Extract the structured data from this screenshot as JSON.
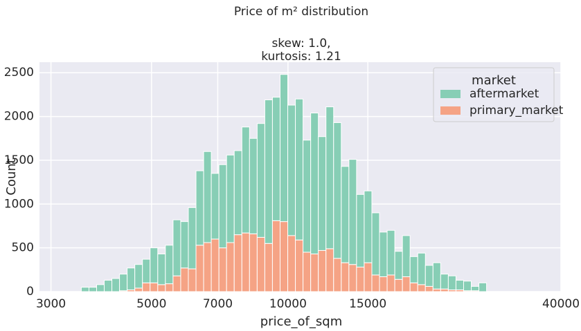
{
  "chart_data": {
    "type": "histogram",
    "title": "Price of m² distribution",
    "subtitle": [
      "skew: 1.0,",
      "kurtosis: 1.21"
    ],
    "xlabel": "price_of_sqm",
    "ylabel": "Count",
    "xscale": "log",
    "bins": [
      3500,
      3639,
      3783,
      3932,
      4088,
      4250,
      4418,
      4593,
      4775,
      4964,
      5161,
      5365,
      5578,
      5799,
      6028,
      6267,
      6515,
      6773,
      7042,
      7320,
      7610,
      7912,
      8225,
      8551,
      8889,
      9241,
      9607,
      9988,
      10383,
      10794,
      11222,
      11666,
      12128,
      12608,
      13108,
      13627,
      14166,
      14727,
      15311,
      15917,
      16547,
      17203,
      17884,
      18592,
      19328,
      20094,
      20890,
      21717,
      22577,
      23471,
      24401,
      25367,
      26372,
      27416
    ],
    "series": [
      {
        "name": "aftermarket",
        "color": "#87ceb5",
        "values": [
          50,
          50,
          80,
          130,
          150,
          190,
          250,
          270,
          270,
          400,
          350,
          440,
          640,
          530,
          700,
          850,
          1040,
          750,
          950,
          1000,
          960,
          1210,
          1090,
          1300,
          1640,
          1410,
          1680,
          1490,
          1610,
          1280,
          1610,
          1300,
          1620,
          1550,
          1100,
          1200,
          830,
          820,
          710,
          510,
          510,
          320,
          470,
          300,
          360,
          240,
          300,
          170,
          160,
          110,
          110,
          50,
          100
        ]
      },
      {
        "name": "primary_market",
        "color": "#f5a385",
        "values": [
          0,
          0,
          0,
          0,
          0,
          10,
          20,
          40,
          100,
          100,
          80,
          90,
          180,
          270,
          260,
          530,
          560,
          600,
          500,
          560,
          650,
          670,
          660,
          620,
          550,
          810,
          800,
          640,
          590,
          450,
          430,
          470,
          490,
          380,
          330,
          310,
          280,
          330,
          190,
          170,
          190,
          140,
          170,
          100,
          80,
          60,
          30,
          30,
          20,
          20,
          10,
          10,
          0
        ]
      }
    ],
    "stacked": true,
    "xlim": [
      2830,
      40000
    ],
    "xticks": [
      3000,
      5000,
      7000,
      10000,
      15000,
      40000
    ],
    "ylim": [
      0,
      2620
    ],
    "yticks": [
      0,
      500,
      1000,
      1500,
      2000,
      2500
    ],
    "grid": true,
    "legend_title": "market",
    "legend_position": "upper right"
  }
}
